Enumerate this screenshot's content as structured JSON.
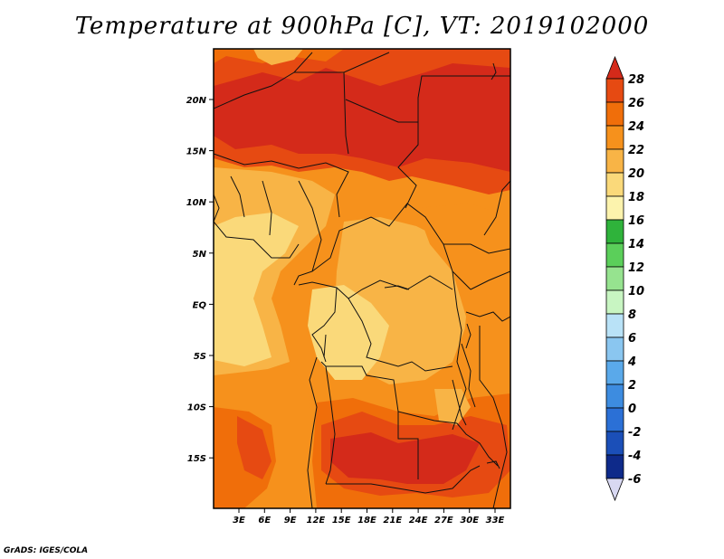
{
  "title": "Temperature at 900hPa [C], VT: 2019102000",
  "credit": "GrADS: IGES/COLA",
  "map": {
    "lat_labels": [
      "20N",
      "15N",
      "10N",
      "5N",
      "EQ",
      "5S",
      "10S",
      "15S"
    ],
    "lon_labels": [
      "3E",
      "6E",
      "9E",
      "12E",
      "15E",
      "18E",
      "21E",
      "24E",
      "27E",
      "30E",
      "33E"
    ]
  },
  "colorbar": {
    "labels": [
      "28",
      "26",
      "24",
      "22",
      "20",
      "18",
      "16",
      "14",
      "12",
      "10",
      "8",
      "6",
      "4",
      "2",
      "0",
      "-2",
      "-4",
      "-6"
    ],
    "colors": [
      "#d42a1a",
      "#e64a12",
      "#f06e0a",
      "#f6911c",
      "#f8b446",
      "#fad97a",
      "#fcf3ad",
      "#2fb33b",
      "#5bcf5a",
      "#96e38f",
      "#c8f5c2",
      "#b9e2f7",
      "#8ac6f0",
      "#5aa9ea",
      "#3d8ce0",
      "#2b70d6",
      "#1b4fb8",
      "#0e2a8a",
      "#061a6e"
    ],
    "top_cap_color": "#d42a1a",
    "bottom_cap_color": "#d8d8f2"
  },
  "field_colors": {
    "hot": "#d42a1a",
    "warm": "#e64a12",
    "mid": "#f06e0a",
    "mild": "#f6911c",
    "cool": "#f8b446",
    "pale": "#fad97a",
    "lightest": "#fcf3ad"
  }
}
